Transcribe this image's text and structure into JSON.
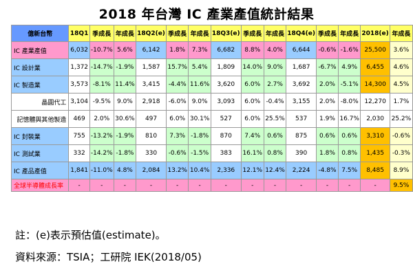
{
  "title": "2018 年台灣 IC 產業產值統計結果",
  "colors": {
    "header_yellow": "#ffff66",
    "header_label_blue": "#6699ff",
    "pink": "#ff99cc",
    "light_blue": "#99ccff",
    "light_green": "#ccffcc",
    "orange": "#ffc000",
    "light_yellow": "#ffffcc",
    "red_text": "#ff0000"
  },
  "notes": {
    "line1": "註：(e)表示預估值(estimate)。",
    "line2": "資料來源：TSIA；工研院 IEK(2018/05)"
  },
  "chart_data": {
    "type": "table",
    "title": "2018 年台灣 IC 產業產值統計結果",
    "columns": [
      "億新台幣",
      "18Q1",
      "季成長",
      "年成長",
      "18Q2(e)",
      "季成長",
      "年成長",
      "18Q3(e)",
      "季成長",
      "年成長",
      "18Q4(e)",
      "季成長",
      "年成長",
      "2018(e)",
      "年成長"
    ],
    "rows": [
      {
        "label": "IC 產業產值",
        "values": [
          "6,032",
          "-10.7%",
          "5.6%",
          "6,142",
          "1.8%",
          "7.3%",
          "6,682",
          "8.8%",
          "4.0%",
          "6,644",
          "-0.6%",
          "-1.6%",
          "25,500",
          "3.6%"
        ]
      },
      {
        "label": "IC 設計業",
        "values": [
          "1,372",
          "-14.7%",
          "-1.9%",
          "1,587",
          "15.7%",
          "5.4%",
          "1,809",
          "14.0%",
          "9.0%",
          "1,687",
          "-6.7%",
          "4.9%",
          "6,455",
          "4.6%"
        ]
      },
      {
        "label": "IC 製造業",
        "values": [
          "3,573",
          "-8.1%",
          "11.4%",
          "3,415",
          "-4.4%",
          "11.6%",
          "3,620",
          "6.0%",
          "2.7%",
          "3,692",
          "2.0%",
          "-5.1%",
          "14,300",
          "4.5%"
        ]
      },
      {
        "label": "晶圓代工",
        "values": [
          "3,104",
          "-9.5%",
          "9.0%",
          "2,918",
          "-6.0%",
          "9.0%",
          "3,093",
          "6.0%",
          "-0.4%",
          "3,155",
          "2.0%",
          "-8.0%",
          "12,270",
          "1.7%"
        ]
      },
      {
        "label": "記憶體與其他製造",
        "values": [
          "469",
          "2.0%",
          "30.6%",
          "497",
          "6.0%",
          "30.1%",
          "527",
          "6.0%",
          "25.5%",
          "537",
          "1.9%",
          "16.7%",
          "2,030",
          "25.2%"
        ]
      },
      {
        "label": "IC 封裝業",
        "values": [
          "755",
          "-13.2%",
          "-1.9%",
          "810",
          "7.3%",
          "-1.8%",
          "870",
          "7.4%",
          "0.6%",
          "875",
          "0.6%",
          "0.6%",
          "3,310",
          "-0.6%"
        ]
      },
      {
        "label": "IC 測試業",
        "values": [
          "332",
          "-14.2%",
          "-1.8%",
          "330",
          "-0.6%",
          "-1.5%",
          "383",
          "16.1%",
          "0.8%",
          "390",
          "1.8%",
          "0.8%",
          "1,435",
          "-0.3%"
        ]
      },
      {
        "label": "IC 產品產值",
        "values": [
          "1,841",
          "-11.0%",
          "4.8%",
          "2,084",
          "13.2%",
          "10.4%",
          "2,336",
          "12.1%",
          "12.4%",
          "2,224",
          "-4.8%",
          "7.5%",
          "8,485",
          "8.9%"
        ]
      },
      {
        "label": "全球半導體成長率",
        "values": [
          "-",
          "-",
          "-",
          "-",
          "-",
          "-",
          "-",
          "-",
          "-",
          "-",
          "-",
          "-",
          "-",
          "9.5%"
        ]
      }
    ]
  }
}
